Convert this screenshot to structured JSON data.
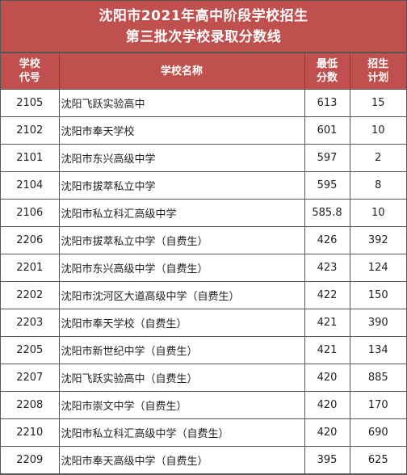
{
  "title": {
    "line1": "沈阳市2021年高中阶段学校招生",
    "line2": "第三批次学校录取分数线"
  },
  "headers": {
    "code": [
      "学校",
      "代号"
    ],
    "name": "学校名称",
    "score": [
      "最低",
      "分数"
    ],
    "plan": [
      "招生",
      "计划"
    ]
  },
  "rows": [
    {
      "code": "2105",
      "name": "沈阳飞跃实验高中",
      "score": "613",
      "plan": "15"
    },
    {
      "code": "2102",
      "name": "沈阳市奉天学校",
      "score": "601",
      "plan": "10"
    },
    {
      "code": "2101",
      "name": "沈阳市东兴高级中学",
      "score": "597",
      "plan": "2"
    },
    {
      "code": "2104",
      "name": "沈阳市拔萃私立中学",
      "score": "595",
      "plan": "8"
    },
    {
      "code": "2106",
      "name": "沈阳市私立科汇高级中学",
      "score": "585.8",
      "plan": "10"
    },
    {
      "code": "2206",
      "name": "沈阳市拔萃私立中学（自费生）",
      "score": "426",
      "plan": "392"
    },
    {
      "code": "2201",
      "name": "沈阳市东兴高级中学（自费生）",
      "score": "423",
      "plan": "124"
    },
    {
      "code": "2202",
      "name": "沈阳市沈河区大道高级中学（自费生）",
      "score": "422",
      "plan": "150"
    },
    {
      "code": "2203",
      "name": "沈阳市奉天学校（自费生）",
      "score": "421",
      "plan": "390"
    },
    {
      "code": "2205",
      "name": "沈阳市新世纪中学（自费生）",
      "score": "421",
      "plan": "134"
    },
    {
      "code": "2207",
      "name": "沈阳飞跃实验高中（自费生）",
      "score": "420",
      "plan": "885"
    },
    {
      "code": "2208",
      "name": "沈阳市崇文中学（自费生）",
      "score": "420",
      "plan": "170"
    },
    {
      "code": "2210",
      "name": "沈阳市私立科汇高级中学（自费生）",
      "score": "420",
      "plan": "690"
    },
    {
      "code": "2209",
      "name": "沈阳市奉天高级中学（自费生）",
      "score": "395",
      "plan": "625"
    }
  ],
  "colors": {
    "header_bg": "#c0504d",
    "header_text": "#ffffff",
    "grid": "#555555"
  }
}
